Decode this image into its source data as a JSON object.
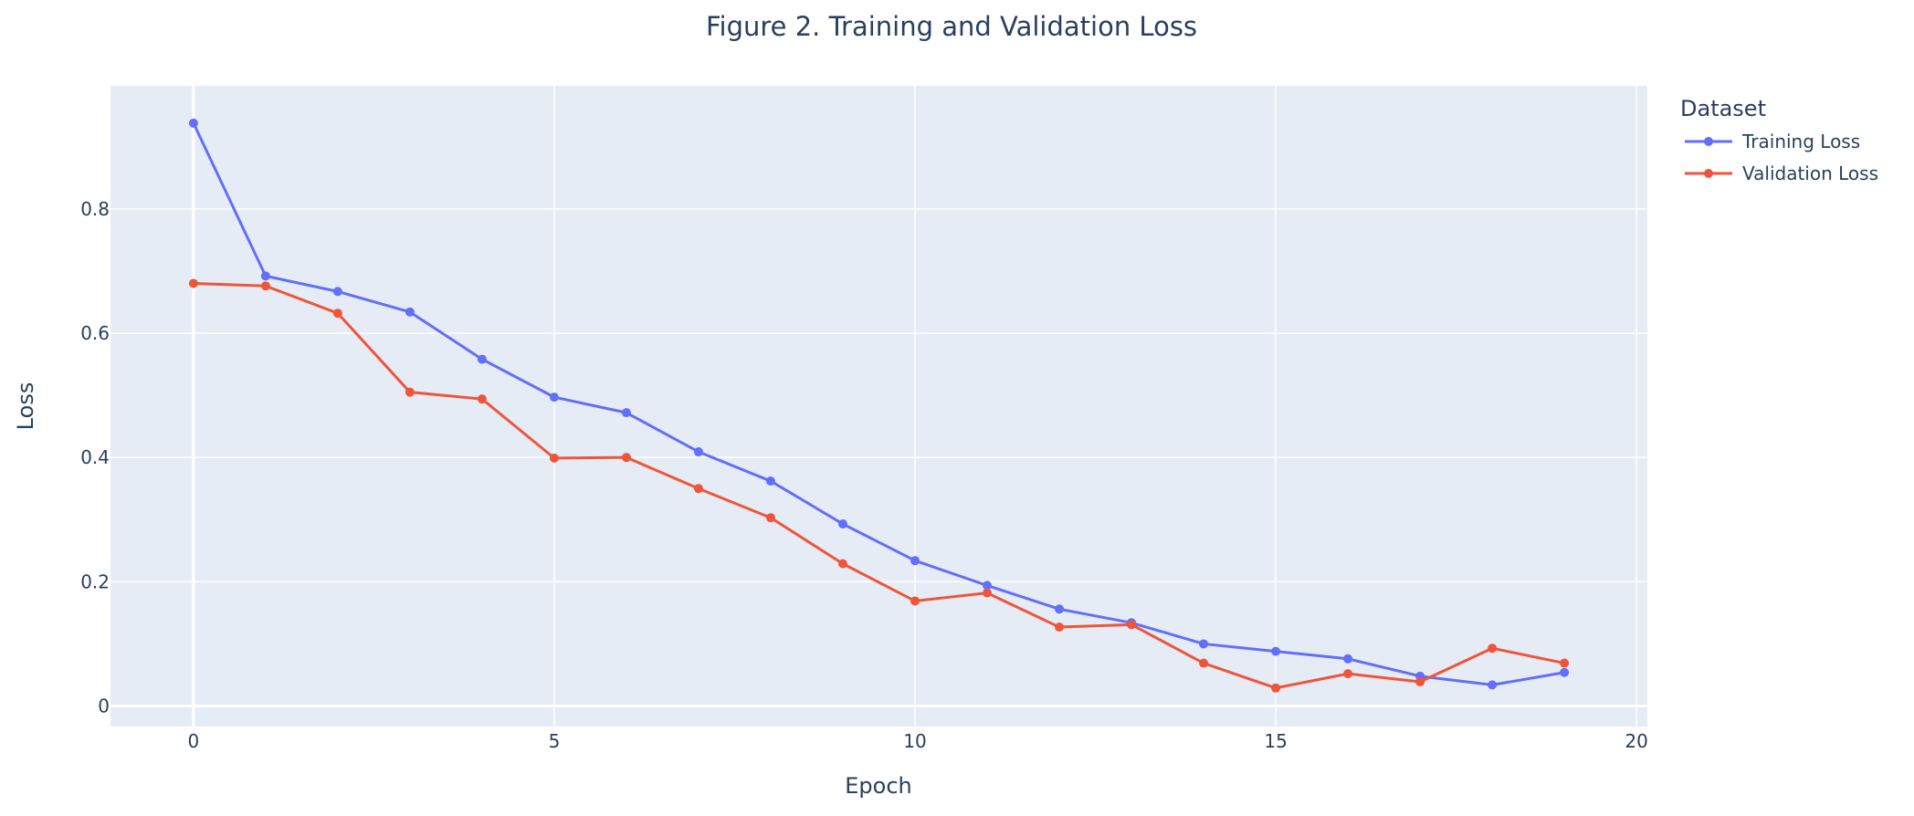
{
  "chart_data": {
    "type": "line",
    "title": "Figure 2. Training and Validation Loss",
    "xlabel": "Epoch",
    "ylabel": "Loss",
    "xlim": [
      -1.15,
      20.15
    ],
    "ylim": [
      -0.033,
      0.998
    ],
    "xticks": [
      0,
      5,
      10,
      15,
      20
    ],
    "yticks": [
      0,
      0.2,
      0.4,
      0.6,
      0.8
    ],
    "xtick_labels": [
      "0",
      "5",
      "10",
      "15",
      "20"
    ],
    "ytick_labels": [
      "0",
      "0.2",
      "0.4",
      "0.6",
      "0.8"
    ],
    "grid": true,
    "legend_title": "Dataset",
    "legend_position": "top-right outside",
    "plot_background": "#e5ecf6",
    "x": [
      0,
      1,
      2,
      3,
      4,
      5,
      6,
      7,
      8,
      9,
      10,
      11,
      12,
      13,
      14,
      15,
      16,
      17,
      18,
      19
    ],
    "series": [
      {
        "name": "Training Loss",
        "color": "#636efa",
        "values": [
          0.938,
          0.692,
          0.667,
          0.634,
          0.558,
          0.497,
          0.472,
          0.409,
          0.362,
          0.293,
          0.234,
          0.194,
          0.156,
          0.134,
          0.1,
          0.088,
          0.076,
          0.048,
          0.034,
          0.054
        ]
      },
      {
        "name": "Validation Loss",
        "color": "#ef553b",
        "values": [
          0.68,
          0.676,
          0.632,
          0.505,
          0.494,
          0.399,
          0.4,
          0.35,
          0.303,
          0.229,
          0.169,
          0.182,
          0.127,
          0.131,
          0.069,
          0.029,
          0.052,
          0.039,
          0.093,
          0.069
        ]
      }
    ]
  }
}
